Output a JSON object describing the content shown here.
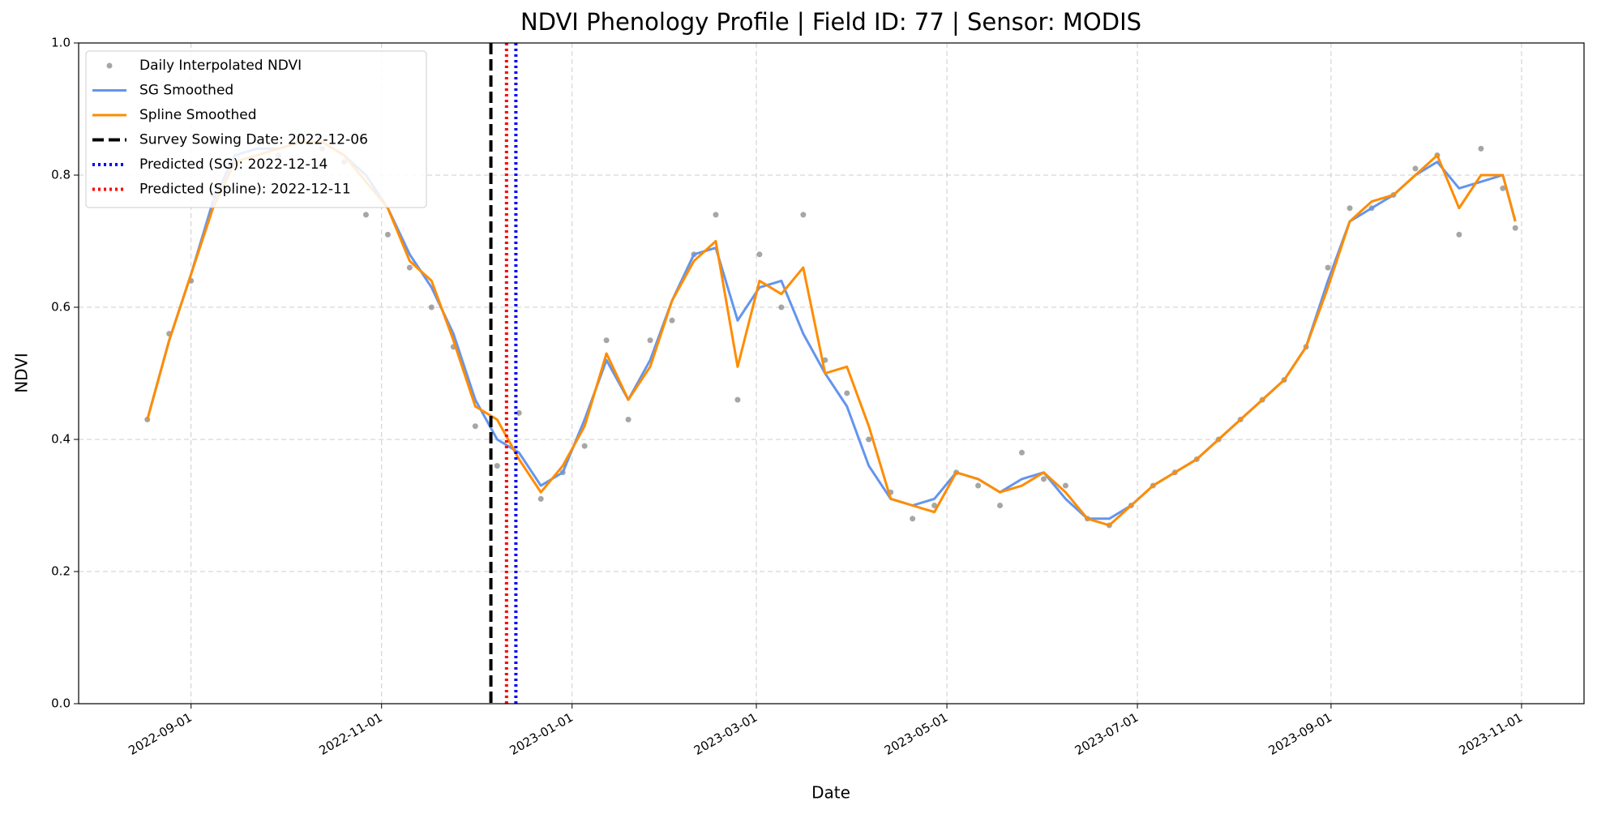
{
  "chart_data": {
    "type": "line",
    "title": "NDVI Phenology Profile | Field ID: 77 | Sensor: MODIS",
    "x_label": "Date",
    "y_label": "NDVI",
    "x": [
      "2022-08-18",
      "2022-08-25",
      "2022-09-01",
      "2022-09-08",
      "2022-09-15",
      "2022-09-22",
      "2022-09-29",
      "2022-10-06",
      "2022-10-13",
      "2022-10-20",
      "2022-10-27",
      "2022-11-03",
      "2022-11-10",
      "2022-11-17",
      "2022-11-24",
      "2022-12-01",
      "2022-12-08",
      "2022-12-15",
      "2022-12-22",
      "2022-12-29",
      "2023-01-05",
      "2023-01-12",
      "2023-01-19",
      "2023-01-26",
      "2023-02-02",
      "2023-02-09",
      "2023-02-16",
      "2023-02-23",
      "2023-03-02",
      "2023-03-09",
      "2023-03-16",
      "2023-03-23",
      "2023-03-30",
      "2023-04-06",
      "2023-04-13",
      "2023-04-20",
      "2023-04-27",
      "2023-05-04",
      "2023-05-11",
      "2023-05-18",
      "2023-05-25",
      "2023-06-01",
      "2023-06-08",
      "2023-06-15",
      "2023-06-22",
      "2023-06-29",
      "2023-07-06",
      "2023-07-13",
      "2023-07-20",
      "2023-07-27",
      "2023-08-03",
      "2023-08-10",
      "2023-08-17",
      "2023-08-24",
      "2023-08-31",
      "2023-09-07",
      "2023-09-14",
      "2023-09-21",
      "2023-09-28",
      "2023-10-05",
      "2023-10-12",
      "2023-10-19",
      "2023-10-26",
      "2023-10-30"
    ],
    "series": [
      {
        "name": "Daily Interpolated NDVI",
        "color": "#808080",
        "marker": true,
        "values": [
          0.43,
          0.56,
          0.64,
          0.77,
          0.82,
          0.85,
          0.83,
          0.86,
          0.84,
          0.82,
          0.74,
          0.71,
          0.66,
          0.6,
          0.54,
          0.42,
          0.36,
          0.44,
          0.31,
          0.35,
          0.39,
          0.55,
          0.43,
          0.55,
          0.58,
          0.68,
          0.74,
          0.46,
          0.68,
          0.6,
          0.74,
          0.52,
          0.47,
          0.4,
          0.32,
          0.28,
          0.3,
          0.35,
          0.33,
          0.3,
          0.38,
          0.34,
          0.33,
          0.28,
          0.27,
          0.3,
          0.33,
          0.35,
          0.37,
          0.4,
          0.43,
          0.46,
          0.49,
          0.54,
          0.66,
          0.75,
          0.75,
          0.77,
          0.81,
          0.83,
          0.71,
          0.84,
          0.78,
          0.72
        ]
      },
      {
        "name": "SG Smoothed",
        "color": "#6495ed",
        "values": [
          0.43,
          0.55,
          0.65,
          0.76,
          0.83,
          0.84,
          0.84,
          0.85,
          0.85,
          0.83,
          0.8,
          0.75,
          0.68,
          0.63,
          0.56,
          0.46,
          0.4,
          0.38,
          0.33,
          0.35,
          0.43,
          0.52,
          0.46,
          0.52,
          0.61,
          0.68,
          0.69,
          0.58,
          0.63,
          0.64,
          0.56,
          0.5,
          0.45,
          0.36,
          0.31,
          0.3,
          0.31,
          0.35,
          0.34,
          0.32,
          0.34,
          0.35,
          0.31,
          0.28,
          0.28,
          0.3,
          0.33,
          0.35,
          0.37,
          0.4,
          0.43,
          0.46,
          0.49,
          0.54,
          0.64,
          0.73,
          0.75,
          0.77,
          0.8,
          0.82,
          0.78,
          0.79,
          0.8,
          0.73
        ]
      },
      {
        "name": "Spline Smoothed",
        "color": "#ff8c00",
        "values": [
          0.43,
          0.55,
          0.65,
          0.75,
          0.82,
          0.83,
          0.84,
          0.85,
          0.85,
          0.83,
          0.79,
          0.75,
          0.67,
          0.64,
          0.55,
          0.45,
          0.43,
          0.37,
          0.32,
          0.36,
          0.42,
          0.53,
          0.46,
          0.51,
          0.61,
          0.67,
          0.7,
          0.51,
          0.64,
          0.62,
          0.66,
          0.5,
          0.51,
          0.42,
          0.31,
          0.3,
          0.29,
          0.35,
          0.34,
          0.32,
          0.33,
          0.35,
          0.32,
          0.28,
          0.27,
          0.3,
          0.33,
          0.35,
          0.37,
          0.4,
          0.43,
          0.46,
          0.49,
          0.54,
          0.63,
          0.73,
          0.76,
          0.77,
          0.8,
          0.83,
          0.75,
          0.8,
          0.8,
          0.73
        ]
      }
    ],
    "vlines": [
      {
        "name": "Survey Sowing Date: 2022-12-06",
        "x": "2022-12-06",
        "color": "#000000",
        "style": "dashed"
      },
      {
        "name": "Predicted (SG): 2022-12-14",
        "x": "2022-12-14",
        "color": "#0000ff",
        "style": "dotted"
      },
      {
        "name": "Predicted (Spline): 2022-12-11",
        "x": "2022-12-11",
        "color": "#ff0000",
        "style": "dotted"
      }
    ],
    "xlim": [
      "2022-07-27",
      "2023-11-21"
    ],
    "xticks": [
      "2022-09-01",
      "2022-11-01",
      "2023-01-01",
      "2023-03-01",
      "2023-05-01",
      "2023-07-01",
      "2023-09-01",
      "2023-11-01"
    ],
    "ylim": [
      0,
      1
    ],
    "yticks": [
      {
        "value": 0,
        "label": "0.0"
      },
      0.2,
      0.4,
      0.6,
      0.8,
      {
        "value": 1,
        "label": "1.0"
      }
    ],
    "grid": true,
    "legend": "upper-left"
  }
}
